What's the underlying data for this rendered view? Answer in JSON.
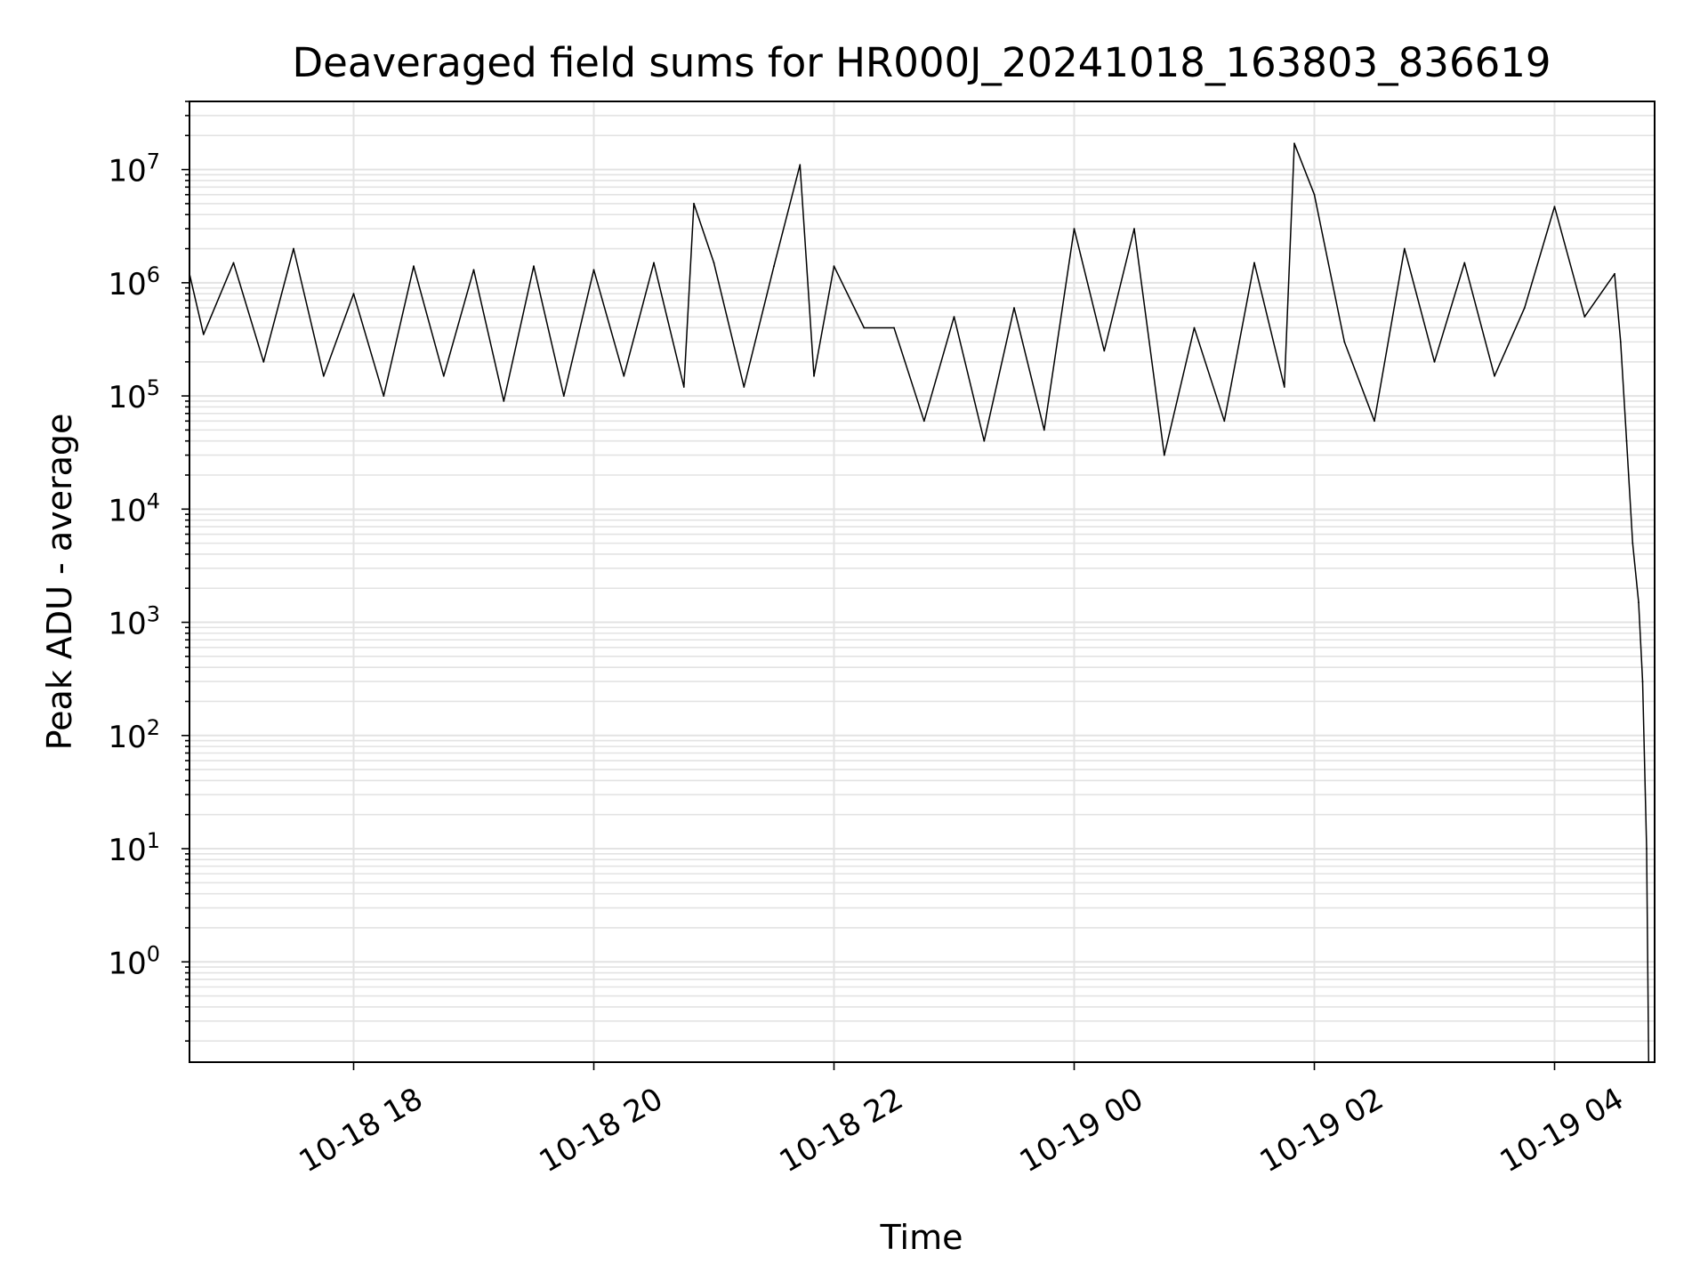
{
  "chart_data": {
    "type": "line",
    "title": "Deaveraged field sums for HR000J_20241018_163803_836619",
    "xlabel": "Time",
    "ylabel": "Peak ADU - average",
    "y_scale": "log",
    "grid": true,
    "xlim": [
      "2024-10-18 16:38",
      "2024-10-19 04:50"
    ],
    "ylim": [
      0.13,
      40000000
    ],
    "x_ticks": [
      {
        "value": "2024-10-18 18:00",
        "label": "10-18 18"
      },
      {
        "value": "2024-10-18 20:00",
        "label": "10-18 20"
      },
      {
        "value": "2024-10-18 22:00",
        "label": "10-18 22"
      },
      {
        "value": "2024-10-19 00:00",
        "label": "10-19 00"
      },
      {
        "value": "2024-10-19 02:00",
        "label": "10-19 02"
      },
      {
        "value": "2024-10-19 04:00",
        "label": "10-19 04"
      }
    ],
    "y_ticks": [
      {
        "value": 1,
        "base": "10",
        "exp": "0"
      },
      {
        "value": 10,
        "base": "10",
        "exp": "1"
      },
      {
        "value": 100,
        "base": "10",
        "exp": "2"
      },
      {
        "value": 1000,
        "base": "10",
        "exp": "3"
      },
      {
        "value": 10000,
        "base": "10",
        "exp": "4"
      },
      {
        "value": 100000,
        "base": "10",
        "exp": "5"
      },
      {
        "value": 1000000,
        "base": "10",
        "exp": "6"
      },
      {
        "value": 10000000,
        "base": "10",
        "exp": "7"
      }
    ],
    "series": [
      {
        "color": "#000000",
        "x": [
          "2024-10-18 16:38",
          "2024-10-18 16:45",
          "2024-10-18 17:00",
          "2024-10-18 17:15",
          "2024-10-18 17:30",
          "2024-10-18 17:45",
          "2024-10-18 18:00",
          "2024-10-18 18:15",
          "2024-10-18 18:30",
          "2024-10-18 18:45",
          "2024-10-18 19:00",
          "2024-10-18 19:15",
          "2024-10-18 19:30",
          "2024-10-18 19:45",
          "2024-10-18 20:00",
          "2024-10-18 20:15",
          "2024-10-18 20:30",
          "2024-10-18 20:45",
          "2024-10-18 20:50",
          "2024-10-18 21:00",
          "2024-10-18 21:15",
          "2024-10-18 21:30",
          "2024-10-18 21:43",
          "2024-10-18 21:50",
          "2024-10-18 22:00",
          "2024-10-18 22:15",
          "2024-10-18 22:30",
          "2024-10-18 22:45",
          "2024-10-18 23:00",
          "2024-10-18 23:15",
          "2024-10-18 23:30",
          "2024-10-18 23:45",
          "2024-10-19 00:00",
          "2024-10-19 00:15",
          "2024-10-19 00:30",
          "2024-10-19 00:45",
          "2024-10-19 01:00",
          "2024-10-19 01:15",
          "2024-10-19 01:30",
          "2024-10-19 01:45",
          "2024-10-19 01:50",
          "2024-10-19 02:00",
          "2024-10-19 02:15",
          "2024-10-19 02:30",
          "2024-10-19 02:45",
          "2024-10-19 03:00",
          "2024-10-19 03:15",
          "2024-10-19 03:30",
          "2024-10-19 03:45",
          "2024-10-19 04:00",
          "2024-10-19 04:15",
          "2024-10-19 04:30",
          "2024-10-19 04:33",
          "2024-10-19 04:36",
          "2024-10-19 04:39",
          "2024-10-19 04:42",
          "2024-10-19 04:44",
          "2024-10-19 04:46",
          "2024-10-19 04:47"
        ],
        "y": [
          1200000,
          350000,
          1500000,
          200000,
          2000000,
          150000,
          800000,
          100000,
          1400000,
          150000,
          1300000,
          90000,
          1400000,
          100000,
          1300000,
          150000,
          1500000,
          120000,
          5000000,
          1500000,
          120000,
          1400000,
          11000000,
          150000,
          1400000,
          400000,
          400000,
          60000,
          500000,
          40000,
          600000,
          50000,
          3000000,
          250000,
          3000000,
          30000,
          400000,
          60000,
          1500000,
          120000,
          17000000,
          6000000,
          300000,
          60000,
          2000000,
          200000,
          1500000,
          150000,
          600000,
          4700000,
          500000,
          1200000,
          300000,
          40000,
          5000,
          1500,
          300,
          10,
          0.13
        ]
      }
    ]
  }
}
